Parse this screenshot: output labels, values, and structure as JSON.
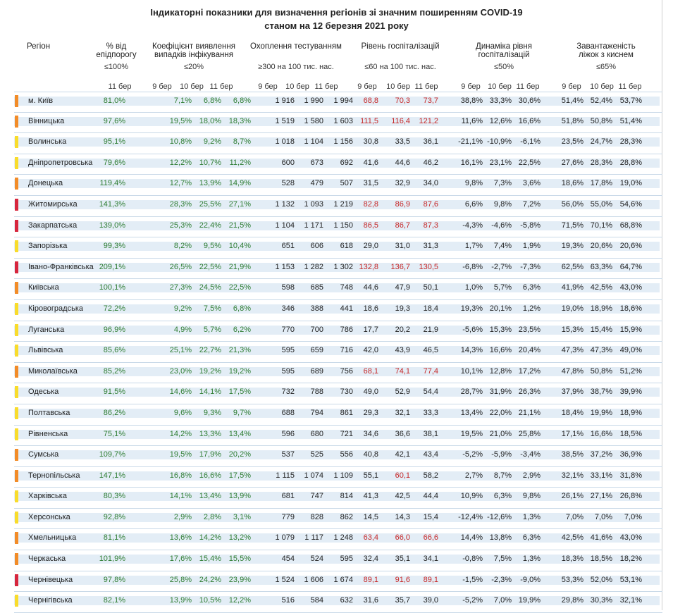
{
  "title_line1": "Індикаторні показники для визначення регіонів зі значним поширенням COVID-19",
  "title_line2": "станом на 12 березня 2021 року",
  "headers": {
    "region": "Регіон",
    "epid": [
      "% від",
      "епідпорогу"
    ],
    "coef": [
      "Коефіцієнт виявлення",
      "випадків інфікування"
    ],
    "test": "Охоплення тестуванням",
    "hosp": "Рівень госпіталізацій",
    "dyn": [
      "Динаміка рівня",
      "госпіталізацій"
    ],
    "oxy": [
      "Завантаженість",
      "ліжок з киснем"
    ]
  },
  "thresholds": {
    "epid": "≤100%",
    "coef": "≤20%",
    "test": "≥300 на 100 тис. нас.",
    "hosp": "≤60 на 100 тис. нас.",
    "dyn": "≤50%",
    "oxy": "≤65%"
  },
  "days": {
    "epid": "11 бер",
    "coef": [
      "9 бер",
      "10 бер",
      "11 бер"
    ],
    "test": [
      "9 бер",
      "10 бер",
      "11 бер"
    ],
    "hosp": [
      "9 бер",
      "10 бер",
      "11 бер"
    ],
    "dyn": [
      "9 бер",
      "10 бер",
      "11 бер"
    ],
    "oxy": [
      "9 бер",
      "10 бер",
      "11 бер"
    ]
  },
  "colors": {
    "orange": "#f28c28",
    "yellow": "#f9dc2c",
    "red": "#d7263d",
    "green_text": "#2e7d32",
    "red_text": "#c62828",
    "row_band": "#e3edf6"
  },
  "rows": [
    {
      "region": "м. Київ",
      "marker": "orange",
      "epid": "81,0%",
      "coef": [
        "7,1%",
        "6,8%",
        "6,8%"
      ],
      "test": [
        "1 916",
        "1 990",
        "1 994"
      ],
      "hosp": [
        "68,8",
        "70,3",
        "73,7"
      ],
      "hosp_red": [
        true,
        true,
        true
      ],
      "dyn": [
        "38,8%",
        "33,3%",
        "30,6%"
      ],
      "oxy": [
        "51,4%",
        "52,4%",
        "53,7%"
      ]
    },
    {
      "region": "Вінницька",
      "marker": "orange",
      "epid": "97,6%",
      "coef": [
        "19,5%",
        "18,0%",
        "18,3%"
      ],
      "test": [
        "1 519",
        "1 580",
        "1 603"
      ],
      "hosp": [
        "111,5",
        "116,4",
        "121,2"
      ],
      "hosp_red": [
        true,
        true,
        true
      ],
      "dyn": [
        "11,6%",
        "12,6%",
        "16,6%"
      ],
      "oxy": [
        "51,8%",
        "50,8%",
        "51,4%"
      ]
    },
    {
      "region": "Волинська",
      "marker": "yellow",
      "epid": "95,1%",
      "coef": [
        "10,8%",
        "9,2%",
        "8,7%"
      ],
      "test": [
        "1 018",
        "1 104",
        "1 156"
      ],
      "hosp": [
        "30,8",
        "33,5",
        "36,1"
      ],
      "hosp_red": [
        false,
        false,
        false
      ],
      "dyn": [
        "-21,1%",
        "-10,9%",
        "-6,1%"
      ],
      "oxy": [
        "23,5%",
        "24,7%",
        "28,3%"
      ]
    },
    {
      "region": "Дніпропетровська",
      "marker": "yellow",
      "epid": "79,6%",
      "coef": [
        "12,2%",
        "10,7%",
        "11,2%"
      ],
      "test": [
        "600",
        "673",
        "692"
      ],
      "hosp": [
        "41,6",
        "44,6",
        "46,2"
      ],
      "hosp_red": [
        false,
        false,
        false
      ],
      "dyn": [
        "16,1%",
        "23,1%",
        "22,5%"
      ],
      "oxy": [
        "27,6%",
        "28,3%",
        "28,8%"
      ]
    },
    {
      "region": "Донецька",
      "marker": "orange",
      "epid": "119,4%",
      "coef": [
        "12,7%",
        "13,9%",
        "14,9%"
      ],
      "test": [
        "528",
        "479",
        "507"
      ],
      "hosp": [
        "31,5",
        "32,9",
        "34,0"
      ],
      "hosp_red": [
        false,
        false,
        false
      ],
      "dyn": [
        "9,8%",
        "7,3%",
        "3,6%"
      ],
      "oxy": [
        "18,6%",
        "17,8%",
        "19,0%"
      ]
    },
    {
      "region": "Житомирська",
      "marker": "red",
      "epid": "141,3%",
      "coef": [
        "28,3%",
        "25,5%",
        "27,1%"
      ],
      "test": [
        "1 132",
        "1 093",
        "1 219"
      ],
      "hosp": [
        "82,8",
        "86,9",
        "87,6"
      ],
      "hosp_red": [
        true,
        true,
        true
      ],
      "dyn": [
        "6,6%",
        "9,8%",
        "7,2%"
      ],
      "oxy": [
        "56,0%",
        "55,0%",
        "54,6%"
      ]
    },
    {
      "region": "Закарпатська",
      "marker": "red",
      "epid": "139,0%",
      "coef": [
        "25,3%",
        "22,4%",
        "21,5%"
      ],
      "test": [
        "1 104",
        "1 171",
        "1 150"
      ],
      "hosp": [
        "86,5",
        "86,7",
        "87,3"
      ],
      "hosp_red": [
        true,
        true,
        true
      ],
      "dyn": [
        "-4,3%",
        "-4,6%",
        "-5,8%"
      ],
      "oxy": [
        "71,5%",
        "70,1%",
        "68,8%"
      ]
    },
    {
      "region": "Запорізька",
      "marker": "yellow",
      "epid": "99,3%",
      "coef": [
        "8,2%",
        "9,5%",
        "10,4%"
      ],
      "test": [
        "651",
        "606",
        "618"
      ],
      "hosp": [
        "29,0",
        "31,0",
        "31,3"
      ],
      "hosp_red": [
        false,
        false,
        false
      ],
      "dyn": [
        "1,7%",
        "7,4%",
        "1,9%"
      ],
      "oxy": [
        "19,3%",
        "20,6%",
        "20,6%"
      ]
    },
    {
      "region": "Івано-Франківська",
      "marker": "red",
      "epid": "209,1%",
      "coef": [
        "26,5%",
        "22,5%",
        "21,9%"
      ],
      "test": [
        "1 153",
        "1 282",
        "1 302"
      ],
      "hosp": [
        "132,8",
        "136,7",
        "130,5"
      ],
      "hosp_red": [
        true,
        true,
        true
      ],
      "dyn": [
        "-6,8%",
        "-2,7%",
        "-7,3%"
      ],
      "oxy": [
        "62,5%",
        "63,3%",
        "64,7%"
      ]
    },
    {
      "region": "Київська",
      "marker": "orange",
      "epid": "100,1%",
      "coef": [
        "27,3%",
        "24,5%",
        "22,5%"
      ],
      "test": [
        "598",
        "685",
        "748"
      ],
      "hosp": [
        "44,6",
        "47,9",
        "50,1"
      ],
      "hosp_red": [
        false,
        false,
        false
      ],
      "dyn": [
        "1,0%",
        "5,7%",
        "6,3%"
      ],
      "oxy": [
        "41,9%",
        "42,5%",
        "43,0%"
      ]
    },
    {
      "region": "Кіровоградська",
      "marker": "yellow",
      "epid": "72,2%",
      "coef": [
        "9,2%",
        "7,5%",
        "6,8%"
      ],
      "test": [
        "346",
        "388",
        "441"
      ],
      "hosp": [
        "18,6",
        "19,3",
        "18,4"
      ],
      "hosp_red": [
        false,
        false,
        false
      ],
      "dyn": [
        "19,3%",
        "20,1%",
        "1,2%"
      ],
      "oxy": [
        "19,0%",
        "18,9%",
        "18,6%"
      ]
    },
    {
      "region": "Луганська",
      "marker": "yellow",
      "epid": "96,9%",
      "coef": [
        "4,9%",
        "5,7%",
        "6,2%"
      ],
      "test": [
        "770",
        "700",
        "786"
      ],
      "hosp": [
        "17,7",
        "20,2",
        "21,9"
      ],
      "hosp_red": [
        false,
        false,
        false
      ],
      "dyn": [
        "-5,6%",
        "15,3%",
        "23,5%"
      ],
      "oxy": [
        "15,3%",
        "15,4%",
        "15,9%"
      ]
    },
    {
      "region": "Львівська",
      "marker": "yellow",
      "epid": "85,6%",
      "coef": [
        "25,1%",
        "22,7%",
        "21,3%"
      ],
      "test": [
        "595",
        "659",
        "716"
      ],
      "hosp": [
        "42,0",
        "43,9",
        "46,5"
      ],
      "hosp_red": [
        false,
        false,
        false
      ],
      "dyn": [
        "14,3%",
        "16,6%",
        "20,4%"
      ],
      "oxy": [
        "47,3%",
        "47,3%",
        "49,0%"
      ]
    },
    {
      "region": "Миколаївська",
      "marker": "orange",
      "epid": "85,2%",
      "coef": [
        "23,0%",
        "19,2%",
        "19,2%"
      ],
      "test": [
        "595",
        "689",
        "756"
      ],
      "hosp": [
        "68,1",
        "74,1",
        "77,4"
      ],
      "hosp_red": [
        true,
        true,
        true
      ],
      "dyn": [
        "10,1%",
        "12,8%",
        "17,2%"
      ],
      "oxy": [
        "47,8%",
        "50,8%",
        "51,2%"
      ]
    },
    {
      "region": "Одеська",
      "marker": "yellow",
      "epid": "91,5%",
      "coef": [
        "14,6%",
        "14,1%",
        "17,5%"
      ],
      "test": [
        "732",
        "788",
        "730"
      ],
      "hosp": [
        "49,0",
        "52,9",
        "54,4"
      ],
      "hosp_red": [
        false,
        false,
        false
      ],
      "dyn": [
        "28,7%",
        "31,9%",
        "26,3%"
      ],
      "oxy": [
        "37,9%",
        "38,7%",
        "39,9%"
      ]
    },
    {
      "region": "Полтавська",
      "marker": "yellow",
      "epid": "86,2%",
      "coef": [
        "9,6%",
        "9,3%",
        "9,7%"
      ],
      "test": [
        "688",
        "794",
        "861"
      ],
      "hosp": [
        "29,3",
        "32,1",
        "33,3"
      ],
      "hosp_red": [
        false,
        false,
        false
      ],
      "dyn": [
        "13,4%",
        "22,0%",
        "21,1%"
      ],
      "oxy": [
        "18,4%",
        "19,9%",
        "18,9%"
      ]
    },
    {
      "region": "Рівненська",
      "marker": "yellow",
      "epid": "75,1%",
      "coef": [
        "14,2%",
        "13,3%",
        "13,4%"
      ],
      "test": [
        "596",
        "680",
        "721"
      ],
      "hosp": [
        "34,6",
        "36,6",
        "38,1"
      ],
      "hosp_red": [
        false,
        false,
        false
      ],
      "dyn": [
        "19,5%",
        "21,0%",
        "25,8%"
      ],
      "oxy": [
        "17,1%",
        "16,6%",
        "18,5%"
      ]
    },
    {
      "region": "Сумська",
      "marker": "orange",
      "epid": "109,7%",
      "coef": [
        "19,5%",
        "17,9%",
        "20,2%"
      ],
      "test": [
        "537",
        "525",
        "556"
      ],
      "hosp": [
        "40,8",
        "42,1",
        "43,4"
      ],
      "hosp_red": [
        false,
        false,
        false
      ],
      "dyn": [
        "-5,2%",
        "-5,9%",
        "-3,4%"
      ],
      "oxy": [
        "38,5%",
        "37,2%",
        "36,9%"
      ]
    },
    {
      "region": "Тернопільська",
      "marker": "orange",
      "epid": "147,1%",
      "coef": [
        "16,8%",
        "16,6%",
        "17,5%"
      ],
      "test": [
        "1 115",
        "1 074",
        "1 109"
      ],
      "hosp": [
        "55,1",
        "60,1",
        "58,2"
      ],
      "hosp_red": [
        false,
        true,
        false
      ],
      "dyn": [
        "2,7%",
        "8,7%",
        "2,9%"
      ],
      "oxy": [
        "32,1%",
        "33,1%",
        "31,8%"
      ]
    },
    {
      "region": "Харківська",
      "marker": "yellow",
      "epid": "80,3%",
      "coef": [
        "14,1%",
        "13,4%",
        "13,9%"
      ],
      "test": [
        "681",
        "747",
        "814"
      ],
      "hosp": [
        "41,3",
        "42,5",
        "44,4"
      ],
      "hosp_red": [
        false,
        false,
        false
      ],
      "dyn": [
        "10,9%",
        "6,3%",
        "9,8%"
      ],
      "oxy": [
        "26,1%",
        "27,1%",
        "26,8%"
      ]
    },
    {
      "region": "Херсонська",
      "marker": "yellow",
      "epid": "92,8%",
      "coef": [
        "2,9%",
        "2,8%",
        "3,1%"
      ],
      "test": [
        "779",
        "828",
        "862"
      ],
      "hosp": [
        "14,5",
        "14,3",
        "15,4"
      ],
      "hosp_red": [
        false,
        false,
        false
      ],
      "dyn": [
        "-12,4%",
        "-12,6%",
        "1,3%"
      ],
      "oxy": [
        "7,0%",
        "7,0%",
        "7,0%"
      ]
    },
    {
      "region": "Хмельницька",
      "marker": "orange",
      "epid": "81,1%",
      "coef": [
        "13,6%",
        "14,2%",
        "13,2%"
      ],
      "test": [
        "1 079",
        "1 117",
        "1 248"
      ],
      "hosp": [
        "63,4",
        "66,0",
        "66,6"
      ],
      "hosp_red": [
        true,
        true,
        true
      ],
      "dyn": [
        "14,4%",
        "13,8%",
        "6,3%"
      ],
      "oxy": [
        "42,5%",
        "41,6%",
        "43,0%"
      ]
    },
    {
      "region": "Черкаська",
      "marker": "orange",
      "epid": "101,9%",
      "coef": [
        "17,6%",
        "15,4%",
        "15,5%"
      ],
      "test": [
        "454",
        "524",
        "595"
      ],
      "hosp": [
        "32,4",
        "35,1",
        "34,1"
      ],
      "hosp_red": [
        false,
        false,
        false
      ],
      "dyn": [
        "-0,8%",
        "7,5%",
        "1,3%"
      ],
      "oxy": [
        "18,3%",
        "18,5%",
        "18,2%"
      ]
    },
    {
      "region": "Чернівецька",
      "marker": "red",
      "epid": "97,8%",
      "coef": [
        "25,8%",
        "24,2%",
        "23,9%"
      ],
      "test": [
        "1 524",
        "1 606",
        "1 674"
      ],
      "hosp": [
        "89,1",
        "91,6",
        "89,1"
      ],
      "hosp_red": [
        true,
        true,
        true
      ],
      "dyn": [
        "-1,5%",
        "-2,3%",
        "-9,0%"
      ],
      "oxy": [
        "53,3%",
        "52,0%",
        "53,1%"
      ]
    },
    {
      "region": "Чернігівська",
      "marker": "yellow",
      "epid": "82,1%",
      "coef": [
        "13,9%",
        "10,5%",
        "12,2%"
      ],
      "test": [
        "516",
        "584",
        "632"
      ],
      "hosp": [
        "31,6",
        "35,7",
        "39,0"
      ],
      "hosp_red": [
        false,
        false,
        false
      ],
      "dyn": [
        "-5,2%",
        "7,0%",
        "19,9%"
      ],
      "oxy": [
        "29,8%",
        "30,3%",
        "32,1%"
      ]
    }
  ]
}
